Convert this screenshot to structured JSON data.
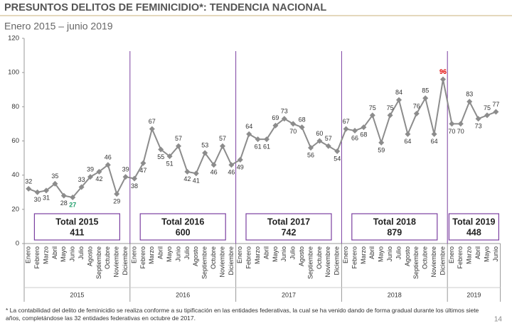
{
  "chart_data": {
    "type": "line",
    "title": "PRESUNTOS DELITOS DE FEMINICIDIO*: TENDENCIA NACIONAL",
    "subtitle": "Enero 2015 – junio 2019",
    "categories": [
      "Enero",
      "Febrero",
      "Marzo",
      "Abril",
      "Mayo",
      "Junio",
      "Julio",
      "Agosto",
      "Septiembre",
      "Octubre",
      "Noviembre",
      "Diciembre",
      "Enero",
      "Febrero",
      "Marzo",
      "Abril",
      "Mayo",
      "Junio",
      "Julio",
      "Agosto",
      "Septiembre",
      "Octubre",
      "Noviembre",
      "Diciembre",
      "Enero",
      "Febrero",
      "Marzo",
      "Abril",
      "Mayo",
      "Junio",
      "Julio",
      "Agosto",
      "Septiembre",
      "Octubre",
      "Noviembre",
      "Diciembre",
      "Enero",
      "Febrero",
      "Marzo",
      "Abril",
      "Mayo",
      "Junio",
      "Julio",
      "Agosto",
      "Septiembre",
      "Octubre",
      "Noviembre",
      "Diciembre",
      "Enero",
      "Febrero",
      "Marzo",
      "Abril",
      "Mayo",
      "Junio"
    ],
    "values": [
      32,
      30,
      31,
      35,
      28,
      27,
      33,
      39,
      42,
      46,
      29,
      39,
      38,
      47,
      67,
      55,
      51,
      57,
      42,
      41,
      53,
      46,
      57,
      46,
      49,
      64,
      61,
      61,
      69,
      73,
      70,
      68,
      56,
      60,
      57,
      54,
      67,
      66,
      68,
      75,
      59,
      75,
      84,
      64,
      76,
      85,
      64,
      96,
      70,
      70,
      83,
      73,
      75,
      77
    ],
    "color": "#8c8c8c",
    "min_label_color": "#1f9e6a",
    "max_label_color": "#e00000",
    "separator_color": "#7b3fa0",
    "ylim": [
      0,
      120
    ],
    "yticks": [
      0,
      20,
      40,
      60,
      80,
      100,
      120
    ],
    "years": [
      {
        "name": "2015",
        "total_label": "Total 2015",
        "total": 411
      },
      {
        "name": "2016",
        "total_label": "Total 2016",
        "total": 600
      },
      {
        "name": "2017",
        "total_label": "Total 2017",
        "total": 742
      },
      {
        "name": "2018",
        "total_label": "Total 2018",
        "total": 879
      },
      {
        "name": "2019",
        "total_label": "Total 2019",
        "total": 448
      }
    ],
    "footnote": "* La contabilidad del delito de feminicidio se realiza conforme a su tipificación en las entidades federativas, la cual se ha venido dando de forma gradual durante los últimos siete años, completándose las 32 entidades federativas en octubre de 2017.",
    "page_number": 14
  }
}
